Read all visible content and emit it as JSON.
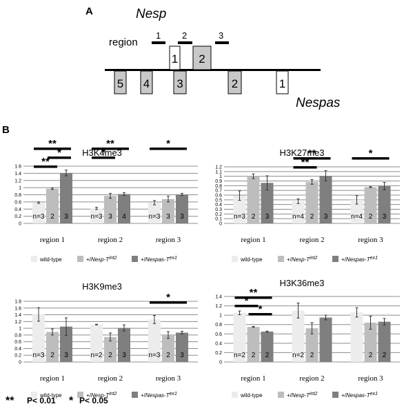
{
  "panels": {
    "A": "A",
    "B": "B"
  },
  "gene_map": {
    "nesp_label": "Nesp",
    "nespas_label": "Nespas",
    "region_label": "region",
    "regions": [
      "1",
      "2",
      "3"
    ],
    "nesp_exons": [
      "1",
      "2"
    ],
    "nespas_exons": [
      "5",
      "4",
      "3",
      "2",
      "1"
    ]
  },
  "colors": {
    "wildtype": "#ececec",
    "nesp": "#bdbdbd",
    "nespas": "#7f7f7f",
    "exon_grey": "#c8c8c8",
    "exon_white": "#ffffff"
  },
  "legend": {
    "wildtype": "wild-type",
    "nesp_prefix": "+/",
    "nesp_name": "Nesp-T",
    "nesp_sup": "int2",
    "nespas_prefix": "+/",
    "nespas_name": "Nespas-T",
    "nespas_sup": "ex1"
  },
  "significance": {
    "double_star": "**",
    "double_text": "P< 0.01",
    "single_star": "*",
    "single_text": "P< 0.05"
  },
  "chart_data": [
    {
      "type": "bar",
      "title": "H3K4me3",
      "categories": [
        "region 1",
        "region 2",
        "region 3"
      ],
      "ylim": [
        0,
        1.6
      ],
      "yticks": [
        "0",
        "0.2",
        "0.4",
        "0.6",
        "0.8",
        "1",
        "1.2",
        "1.4",
        "1.6"
      ],
      "series": [
        {
          "name": "wild-type",
          "values": [
            0.58,
            0.42,
            0.58
          ],
          "errors": [
            0.02,
            0.03,
            0.06
          ],
          "n": [
            "n=3",
            "n=3",
            "n=3"
          ]
        },
        {
          "name": "+/Nesp-Tint2",
          "values": [
            0.97,
            0.77,
            0.68
          ],
          "errors": [
            0.02,
            0.07,
            0.08
          ],
          "n": [
            "2",
            "3",
            "3"
          ]
        },
        {
          "name": "+/Nespas-Tex1",
          "values": [
            1.41,
            0.82,
            0.81
          ],
          "errors": [
            0.08,
            0.04,
            0.03
          ],
          "n": [
            "3",
            "4",
            "3"
          ]
        }
      ],
      "significance": [
        {
          "region": 0,
          "from": 0,
          "to": 2,
          "mark": "**"
        },
        {
          "region": 0,
          "from": 1,
          "to": 2,
          "mark": "*"
        },
        {
          "region": 0,
          "from": 0,
          "to": 1,
          "mark": "**"
        },
        {
          "region": 1,
          "from": 0,
          "to": 2,
          "mark": "**"
        },
        {
          "region": 1,
          "from": 0,
          "to": 1,
          "mark": "*"
        },
        {
          "region": 2,
          "from": 0,
          "to": 2,
          "mark": "*"
        }
      ]
    },
    {
      "type": "bar",
      "title": "H3K27me3",
      "categories": [
        "region 1",
        "region 2",
        "region 3"
      ],
      "ylim": [
        0,
        1.2
      ],
      "yticks": [
        "0",
        "0.1",
        "0.2",
        "0.3",
        "0.4",
        "0.5",
        "0.6",
        "0.7",
        "0.8",
        "0.9",
        "1",
        "1.1",
        "1.2"
      ],
      "series": [
        {
          "name": "wild-type",
          "values": [
            0.59,
            0.47,
            0.5
          ],
          "errors": [
            0.1,
            0.05,
            0.09
          ],
          "n": [
            "n=3",
            "n=4",
            "n=4"
          ]
        },
        {
          "name": "+/Nesp-Tint2",
          "values": [
            1.0,
            0.88,
            0.77
          ],
          "errors": [
            0.05,
            0.05,
            0.01
          ],
          "n": [
            "2",
            "2",
            "2"
          ]
        },
        {
          "name": "+/Nespas-Tex1",
          "values": [
            0.86,
            1.01,
            0.79
          ],
          "errors": [
            0.15,
            0.11,
            0.08
          ],
          "n": [
            "3",
            "3",
            "3"
          ]
        }
      ],
      "significance": [
        {
          "region": 1,
          "from": 0,
          "to": 2,
          "mark": "**"
        },
        {
          "region": 1,
          "from": 0,
          "to": 1,
          "mark": "**"
        },
        {
          "region": 2,
          "from": 0,
          "to": 2,
          "mark": "*"
        }
      ]
    },
    {
      "type": "bar",
      "title": "H3K9me3",
      "categories": [
        "region 1",
        "region 2",
        "region 3"
      ],
      "ylim": [
        0,
        1.8
      ],
      "yticks": [
        "0",
        "0.2",
        "0.4",
        "0.6",
        "0.8",
        "1",
        "1.2",
        "1.4",
        "1.6",
        "1.8"
      ],
      "series": [
        {
          "name": "wild-type",
          "values": [
            1.41,
            1.11,
            1.26
          ],
          "errors": [
            0.2,
            0.01,
            0.12
          ],
          "n": [
            "n=3",
            "n=2",
            "n=3"
          ]
        },
        {
          "name": "+/Nesp-Tint2",
          "values": [
            0.89,
            0.74,
            0.8
          ],
          "errors": [
            0.09,
            0.12,
            0.1
          ],
          "n": [
            "2",
            "2",
            "2"
          ]
        },
        {
          "name": "+/Nespas-Tex1",
          "values": [
            1.05,
            1.01,
            0.87
          ],
          "errors": [
            0.26,
            0.09,
            0.04
          ],
          "n": [
            "3",
            "3",
            "3"
          ]
        }
      ],
      "significance": [
        {
          "region": 2,
          "from": 0,
          "to": 2,
          "mark": "*"
        }
      ]
    },
    {
      "type": "bar",
      "title": "H3K36me3",
      "categories": [
        "region 1",
        "region 2",
        "region 3"
      ],
      "ylim": [
        0,
        1.4
      ],
      "yticks": [
        "0",
        "0.2",
        "0.4",
        "0.6",
        "0.8",
        "1",
        "1.2",
        "1.4"
      ],
      "series": [
        {
          "name": "wild-type",
          "values": [
            1.05,
            1.1,
            1.06
          ],
          "errors": [
            0.04,
            0.16,
            0.1
          ],
          "n": [
            "n=2",
            "n=2",
            ""
          ]
        },
        {
          "name": "+/Nesp-Tint2",
          "values": [
            0.75,
            0.72,
            0.84
          ],
          "errors": [
            0.01,
            0.12,
            0.14
          ],
          "n": [
            "2",
            "2",
            "2"
          ]
        },
        {
          "name": "+/Nespas-Tex1",
          "values": [
            0.65,
            0.95,
            0.86
          ],
          "errors": [
            0.01,
            0.05,
            0.07
          ],
          "n": [
            "2",
            "",
            "2"
          ]
        }
      ],
      "significance": [
        {
          "region": 0,
          "from": 0,
          "to": 2,
          "mark": "**"
        },
        {
          "region": 0,
          "from": 0,
          "to": 1,
          "mark": "*"
        },
        {
          "region": 0,
          "from": 1,
          "to": 2,
          "mark": "*"
        }
      ]
    }
  ]
}
